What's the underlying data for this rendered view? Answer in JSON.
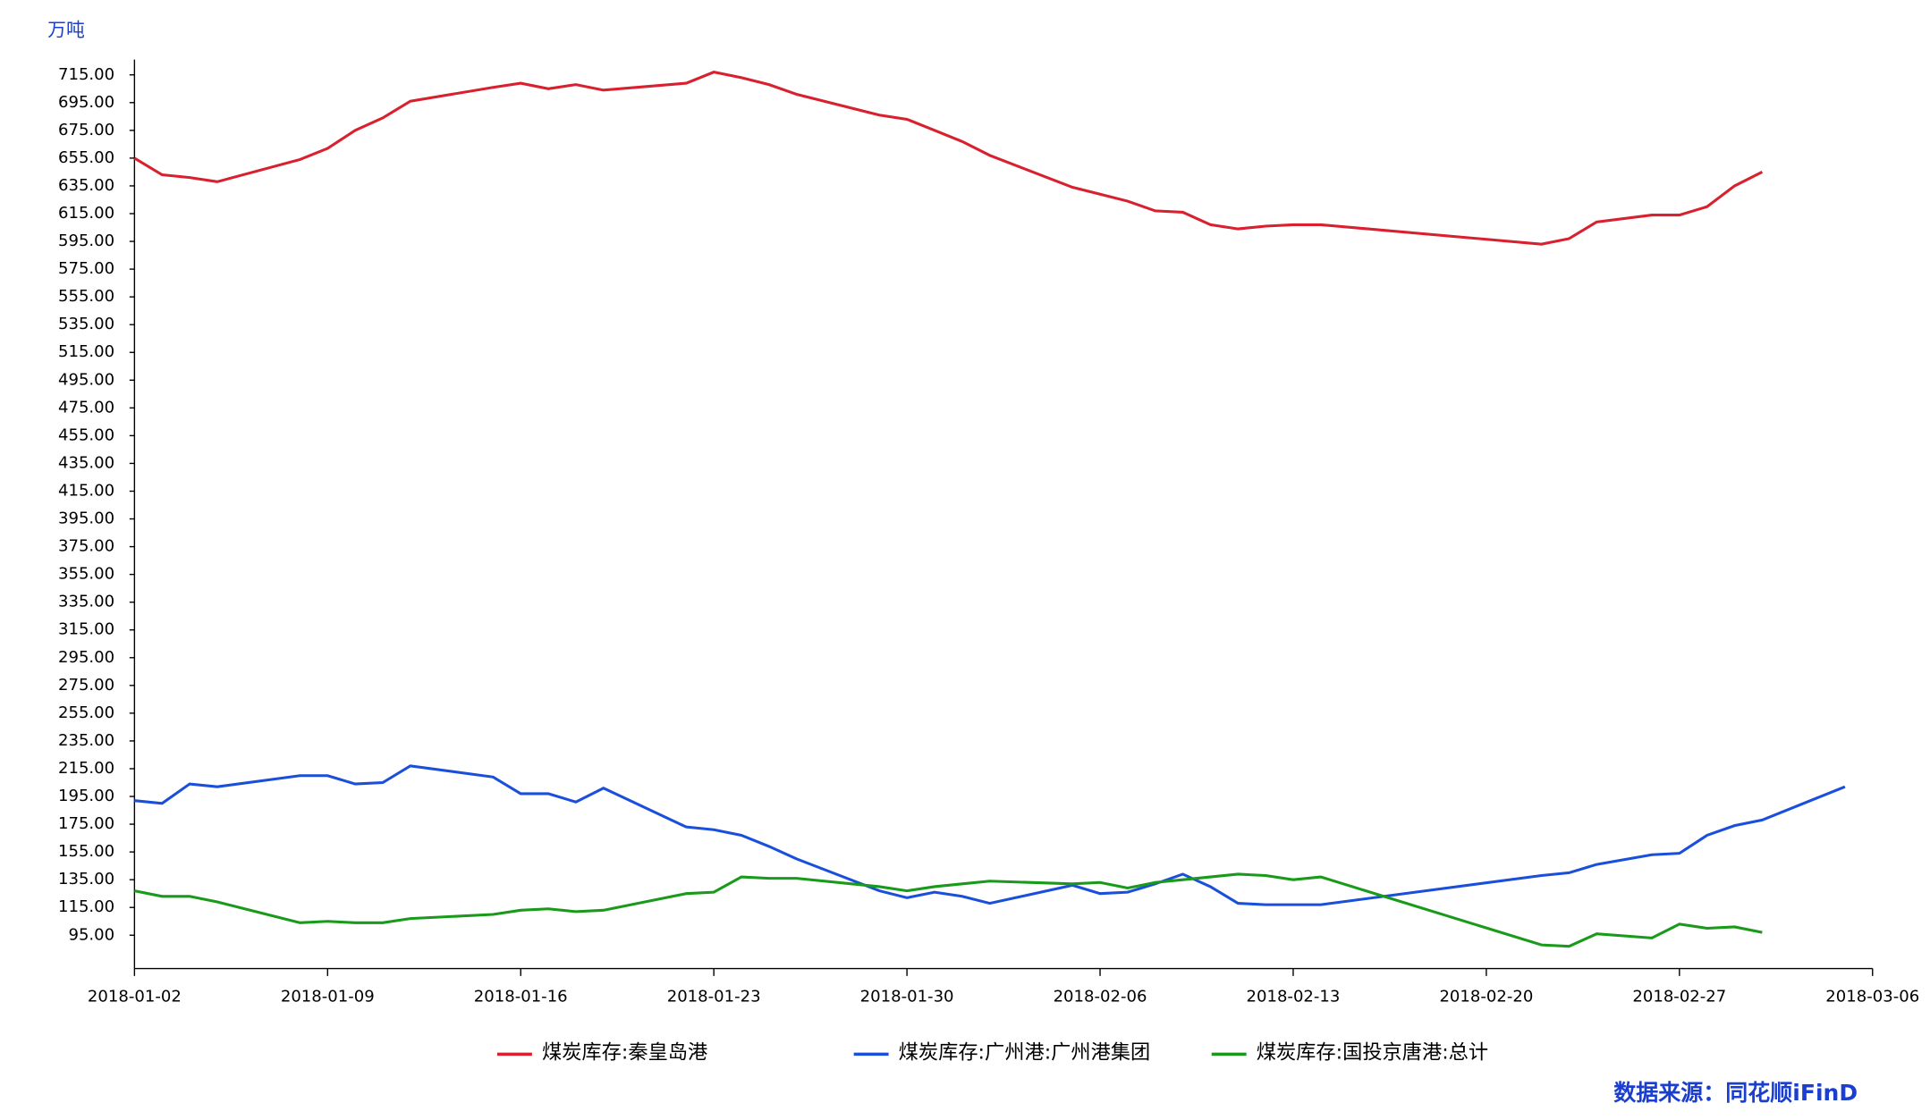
{
  "chart_data": {
    "type": "line",
    "y_unit": "万吨",
    "source": "数据来源：同花顺iFinD",
    "x": [
      "2018-01-02",
      "2018-01-03",
      "2018-01-04",
      "2018-01-05",
      "2018-01-08",
      "2018-01-09",
      "2018-01-10",
      "2018-01-11",
      "2018-01-12",
      "2018-01-15",
      "2018-01-16",
      "2018-01-17",
      "2018-01-18",
      "2018-01-19",
      "2018-01-22",
      "2018-01-23",
      "2018-01-24",
      "2018-01-25",
      "2018-01-26",
      "2018-01-29",
      "2018-01-30",
      "2018-01-31",
      "2018-02-01",
      "2018-02-02",
      "2018-02-05",
      "2018-02-06",
      "2018-02-07",
      "2018-02-08",
      "2018-02-09",
      "2018-02-10",
      "2018-02-11",
      "2018-02-12",
      "2018-02-13",
      "2018-02-14",
      "2018-02-22",
      "2018-02-23",
      "2018-02-24",
      "2018-02-26",
      "2018-02-27",
      "2018-02-28",
      "2018-03-01",
      "2018-03-02",
      "2018-03-05"
    ],
    "series": [
      {
        "name": "煤炭库存:秦皇岛港",
        "color": "#d9202e",
        "values": [
          655,
          643,
          641,
          638,
          654,
          662,
          675,
          684,
          696,
          706,
          709,
          705,
          708,
          704,
          709,
          717,
          713,
          708,
          701,
          686,
          683,
          675,
          667,
          657,
          634,
          629,
          624,
          617,
          616,
          607,
          604,
          606,
          607,
          607,
          593,
          597,
          609,
          614,
          614,
          620,
          635,
          645,
          null
        ]
      },
      {
        "name": "煤炭库存:广州港:广州港集团",
        "color": "#1a4fdc",
        "values": [
          192,
          190,
          204,
          202,
          210,
          210,
          204,
          205,
          217,
          209,
          197,
          197,
          191,
          201,
          173,
          171,
          167,
          159,
          150,
          127,
          122,
          126,
          123,
          118,
          131,
          125,
          126,
          132,
          139,
          130,
          118,
          117,
          117,
          117,
          138,
          140,
          146,
          153,
          154,
          167,
          174,
          178,
          202
        ]
      },
      {
        "name": "煤炭库存:国投京唐港:总计",
        "color": "#1a9a1a",
        "values": [
          127,
          123,
          123,
          119,
          104,
          105,
          104,
          104,
          107,
          110,
          113,
          114,
          112,
          113,
          125,
          126,
          137,
          136,
          136,
          130,
          127,
          130,
          132,
          134,
          132,
          133,
          129,
          133,
          135,
          137,
          139,
          138,
          135,
          137,
          88,
          87,
          96,
          93,
          103,
          100,
          101,
          97,
          null
        ]
      }
    ],
    "xlim": [
      "2018-01-02",
      "2018-03-06"
    ],
    "xticks": [
      "2018-01-02",
      "2018-01-09",
      "2018-01-16",
      "2018-01-23",
      "2018-01-30",
      "2018-02-06",
      "2018-02-13",
      "2018-02-20",
      "2018-02-27",
      "2018-03-06"
    ],
    "ylim": [
      71,
      726
    ],
    "yticks": [
      {
        "value": 95,
        "label": "95.00"
      },
      {
        "value": 115,
        "label": "115.00"
      },
      {
        "value": 135,
        "label": "135.00"
      },
      {
        "value": 155,
        "label": "155.00"
      },
      {
        "value": 175,
        "label": "175.00"
      },
      {
        "value": 195,
        "label": "195.00"
      },
      {
        "value": 215,
        "label": "215.00"
      },
      {
        "value": 235,
        "label": "235.00"
      },
      {
        "value": 255,
        "label": "255.00"
      },
      {
        "value": 275,
        "label": "275.00"
      },
      {
        "value": 295,
        "label": "295.00"
      },
      {
        "value": 315,
        "label": "315.00"
      },
      {
        "value": 335,
        "label": "335.00"
      },
      {
        "value": 355,
        "label": "355.00"
      },
      {
        "value": 375,
        "label": "375.00"
      },
      {
        "value": 395,
        "label": "395.00"
      },
      {
        "value": 415,
        "label": "415.00"
      },
      {
        "value": 435,
        "label": "435.00"
      },
      {
        "value": 455,
        "label": "455.00"
      },
      {
        "value": 475,
        "label": "475.00"
      },
      {
        "value": 495,
        "label": "495.00"
      },
      {
        "value": 515,
        "label": "515.00"
      },
      {
        "value": 535,
        "label": "535.00"
      },
      {
        "value": 555,
        "label": "555.00"
      },
      {
        "value": 575,
        "label": "575.00"
      },
      {
        "value": 595,
        "label": "595.00"
      },
      {
        "value": 615,
        "label": "615.00"
      },
      {
        "value": 635,
        "label": "635.00"
      },
      {
        "value": 655,
        "label": "655.00"
      },
      {
        "value": 675,
        "label": "675.00"
      },
      {
        "value": 695,
        "label": "695.00"
      },
      {
        "value": 715,
        "label": "715.00"
      }
    ],
    "grid": false
  }
}
